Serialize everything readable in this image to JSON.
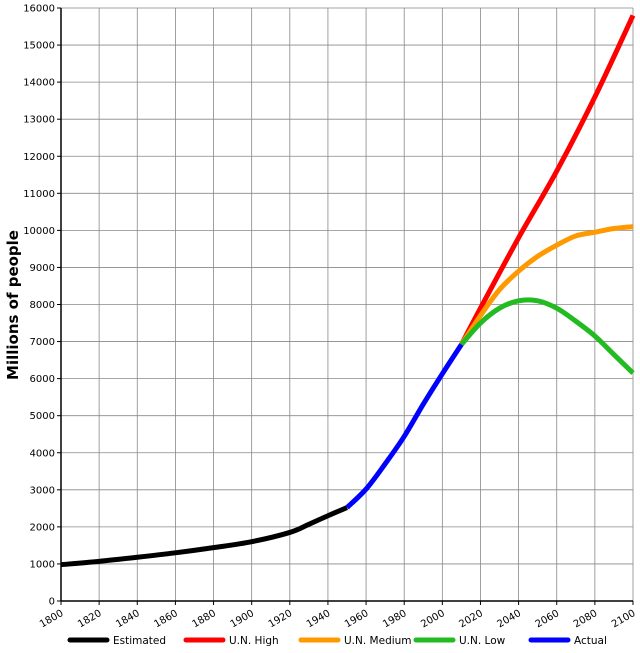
{
  "chart_data": {
    "type": "line",
    "title": "",
    "xlabel": "",
    "ylabel": "Millions of people",
    "xlim": [
      1800,
      2100
    ],
    "ylim": [
      0,
      16000
    ],
    "x_ticks": [
      1800,
      1820,
      1840,
      1860,
      1880,
      1900,
      1920,
      1940,
      1960,
      1980,
      2000,
      2020,
      2040,
      2060,
      2080,
      2100
    ],
    "y_ticks": [
      0,
      1000,
      2000,
      3000,
      4000,
      5000,
      6000,
      7000,
      8000,
      9000,
      10000,
      11000,
      12000,
      13000,
      14000,
      15000,
      16000
    ],
    "grid": true,
    "legend_position": "bottom",
    "series": [
      {
        "name": "Estimated",
        "color": "#000000",
        "x": [
          1800,
          1820,
          1840,
          1860,
          1880,
          1900,
          1920,
          1930,
          1940,
          1950
        ],
        "y": [
          980,
          1070,
          1180,
          1300,
          1440,
          1600,
          1850,
          2070,
          2300,
          2520
        ]
      },
      {
        "name": "U.N. High",
        "color": "#ff0000",
        "x": [
          2010,
          2020,
          2040,
          2060,
          2080,
          2100
        ],
        "y": [
          6920,
          7900,
          9800,
          11600,
          13600,
          15800
        ]
      },
      {
        "name": "U.N. Medium",
        "color": "#ff9900",
        "x": [
          2010,
          2020,
          2030,
          2040,
          2050,
          2060,
          2070,
          2080,
          2090,
          2100
        ],
        "y": [
          6920,
          7700,
          8400,
          8900,
          9300,
          9600,
          9850,
          9950,
          10050,
          10100
        ]
      },
      {
        "name": "U.N. Low",
        "color": "#22bb22",
        "x": [
          2010,
          2020,
          2030,
          2040,
          2050,
          2060,
          2070,
          2080,
          2090,
          2100
        ],
        "y": [
          6920,
          7500,
          7900,
          8100,
          8100,
          7900,
          7550,
          7150,
          6650,
          6150
        ]
      },
      {
        "name": "Actual",
        "color": "#0000ff",
        "x": [
          1950,
          1960,
          1970,
          1980,
          1990,
          2000,
          2010
        ],
        "y": [
          2520,
          3020,
          3700,
          4440,
          5310,
          6130,
          6920
        ]
      }
    ]
  }
}
